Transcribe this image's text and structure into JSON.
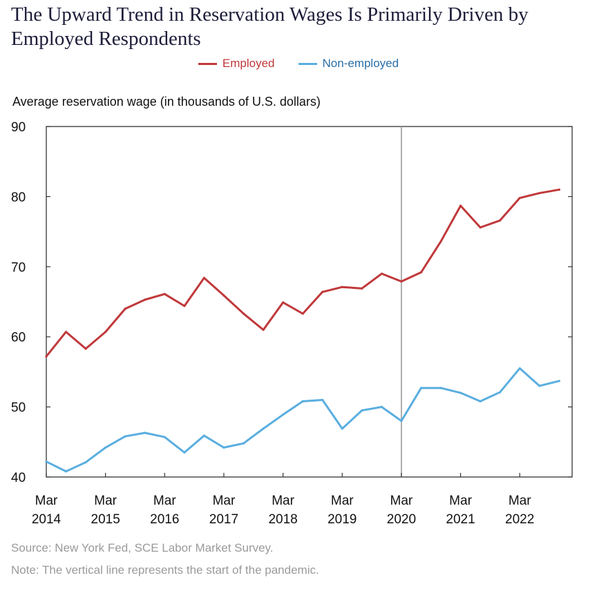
{
  "chart_data": {
    "type": "line",
    "title": "The Upward Trend in Reservation Wages Is Primarily Driven by Employed Respondents",
    "ylabel": "Average reservation wage (in thousands of U.S. dollars)",
    "xlabel": "",
    "ylim": [
      40,
      90
    ],
    "yticks": [
      40,
      50,
      60,
      70,
      80,
      90
    ],
    "x_tick_labels": [
      {
        "month": "Mar",
        "year": "2014"
      },
      {
        "month": "Mar",
        "year": "2015"
      },
      {
        "month": "Mar",
        "year": "2016"
      },
      {
        "month": "Mar",
        "year": "2017"
      },
      {
        "month": "Mar",
        "year": "2018"
      },
      {
        "month": "Mar",
        "year": "2019"
      },
      {
        "month": "Mar",
        "year": "2020"
      },
      {
        "month": "Mar",
        "year": "2021"
      },
      {
        "month": "Mar",
        "year": "2022"
      }
    ],
    "x": [
      "Mar 2014",
      "Jul 2014",
      "Nov 2014",
      "Mar 2015",
      "Jul 2015",
      "Nov 2015",
      "Mar 2016",
      "Jul 2016",
      "Nov 2016",
      "Mar 2017",
      "Jul 2017",
      "Nov 2017",
      "Mar 2018",
      "Jul 2018",
      "Nov 2018",
      "Mar 2019",
      "Jul 2019",
      "Nov 2019",
      "Mar 2020",
      "Jul 2020",
      "Nov 2020",
      "Mar 2021",
      "Jul 2021",
      "Nov 2021",
      "Mar 2022",
      "Jul 2022",
      "Nov 2022"
    ],
    "series": [
      {
        "name": "Employed",
        "color": "#c0393b",
        "values": [
          57.2,
          60.7,
          58.3,
          60.7,
          64.0,
          65.3,
          66.1,
          64.4,
          68.4,
          65.9,
          63.3,
          61.0,
          64.9,
          63.3,
          66.4,
          67.1,
          66.9,
          69.0,
          67.9,
          69.2,
          73.6,
          78.7,
          75.6,
          76.6,
          79.8,
          80.5,
          81.0
        ]
      },
      {
        "name": "Non-employed",
        "color": "#5aaedf",
        "values": [
          42.2,
          40.8,
          42.1,
          44.2,
          45.8,
          46.3,
          45.7,
          43.5,
          45.9,
          44.2,
          44.8,
          46.9,
          48.9,
          50.8,
          51.0,
          46.9,
          49.5,
          50.0,
          48.0,
          52.7,
          52.7,
          52.0,
          50.8,
          52.1,
          55.5,
          53.0,
          53.7
        ]
      }
    ],
    "annotations": [
      "vertical line at Mar 2020"
    ],
    "grid": false,
    "legend_position": "top-center"
  },
  "source": "Source: New York Fed, SCE Labor Market Survey.",
  "note": "Note: The vertical line represents the start of the pandemic.",
  "colors": {
    "axis": "#333333",
    "vline": "#999999",
    "footnote": "#9a9a9a",
    "title": "#1d1d3a"
  }
}
